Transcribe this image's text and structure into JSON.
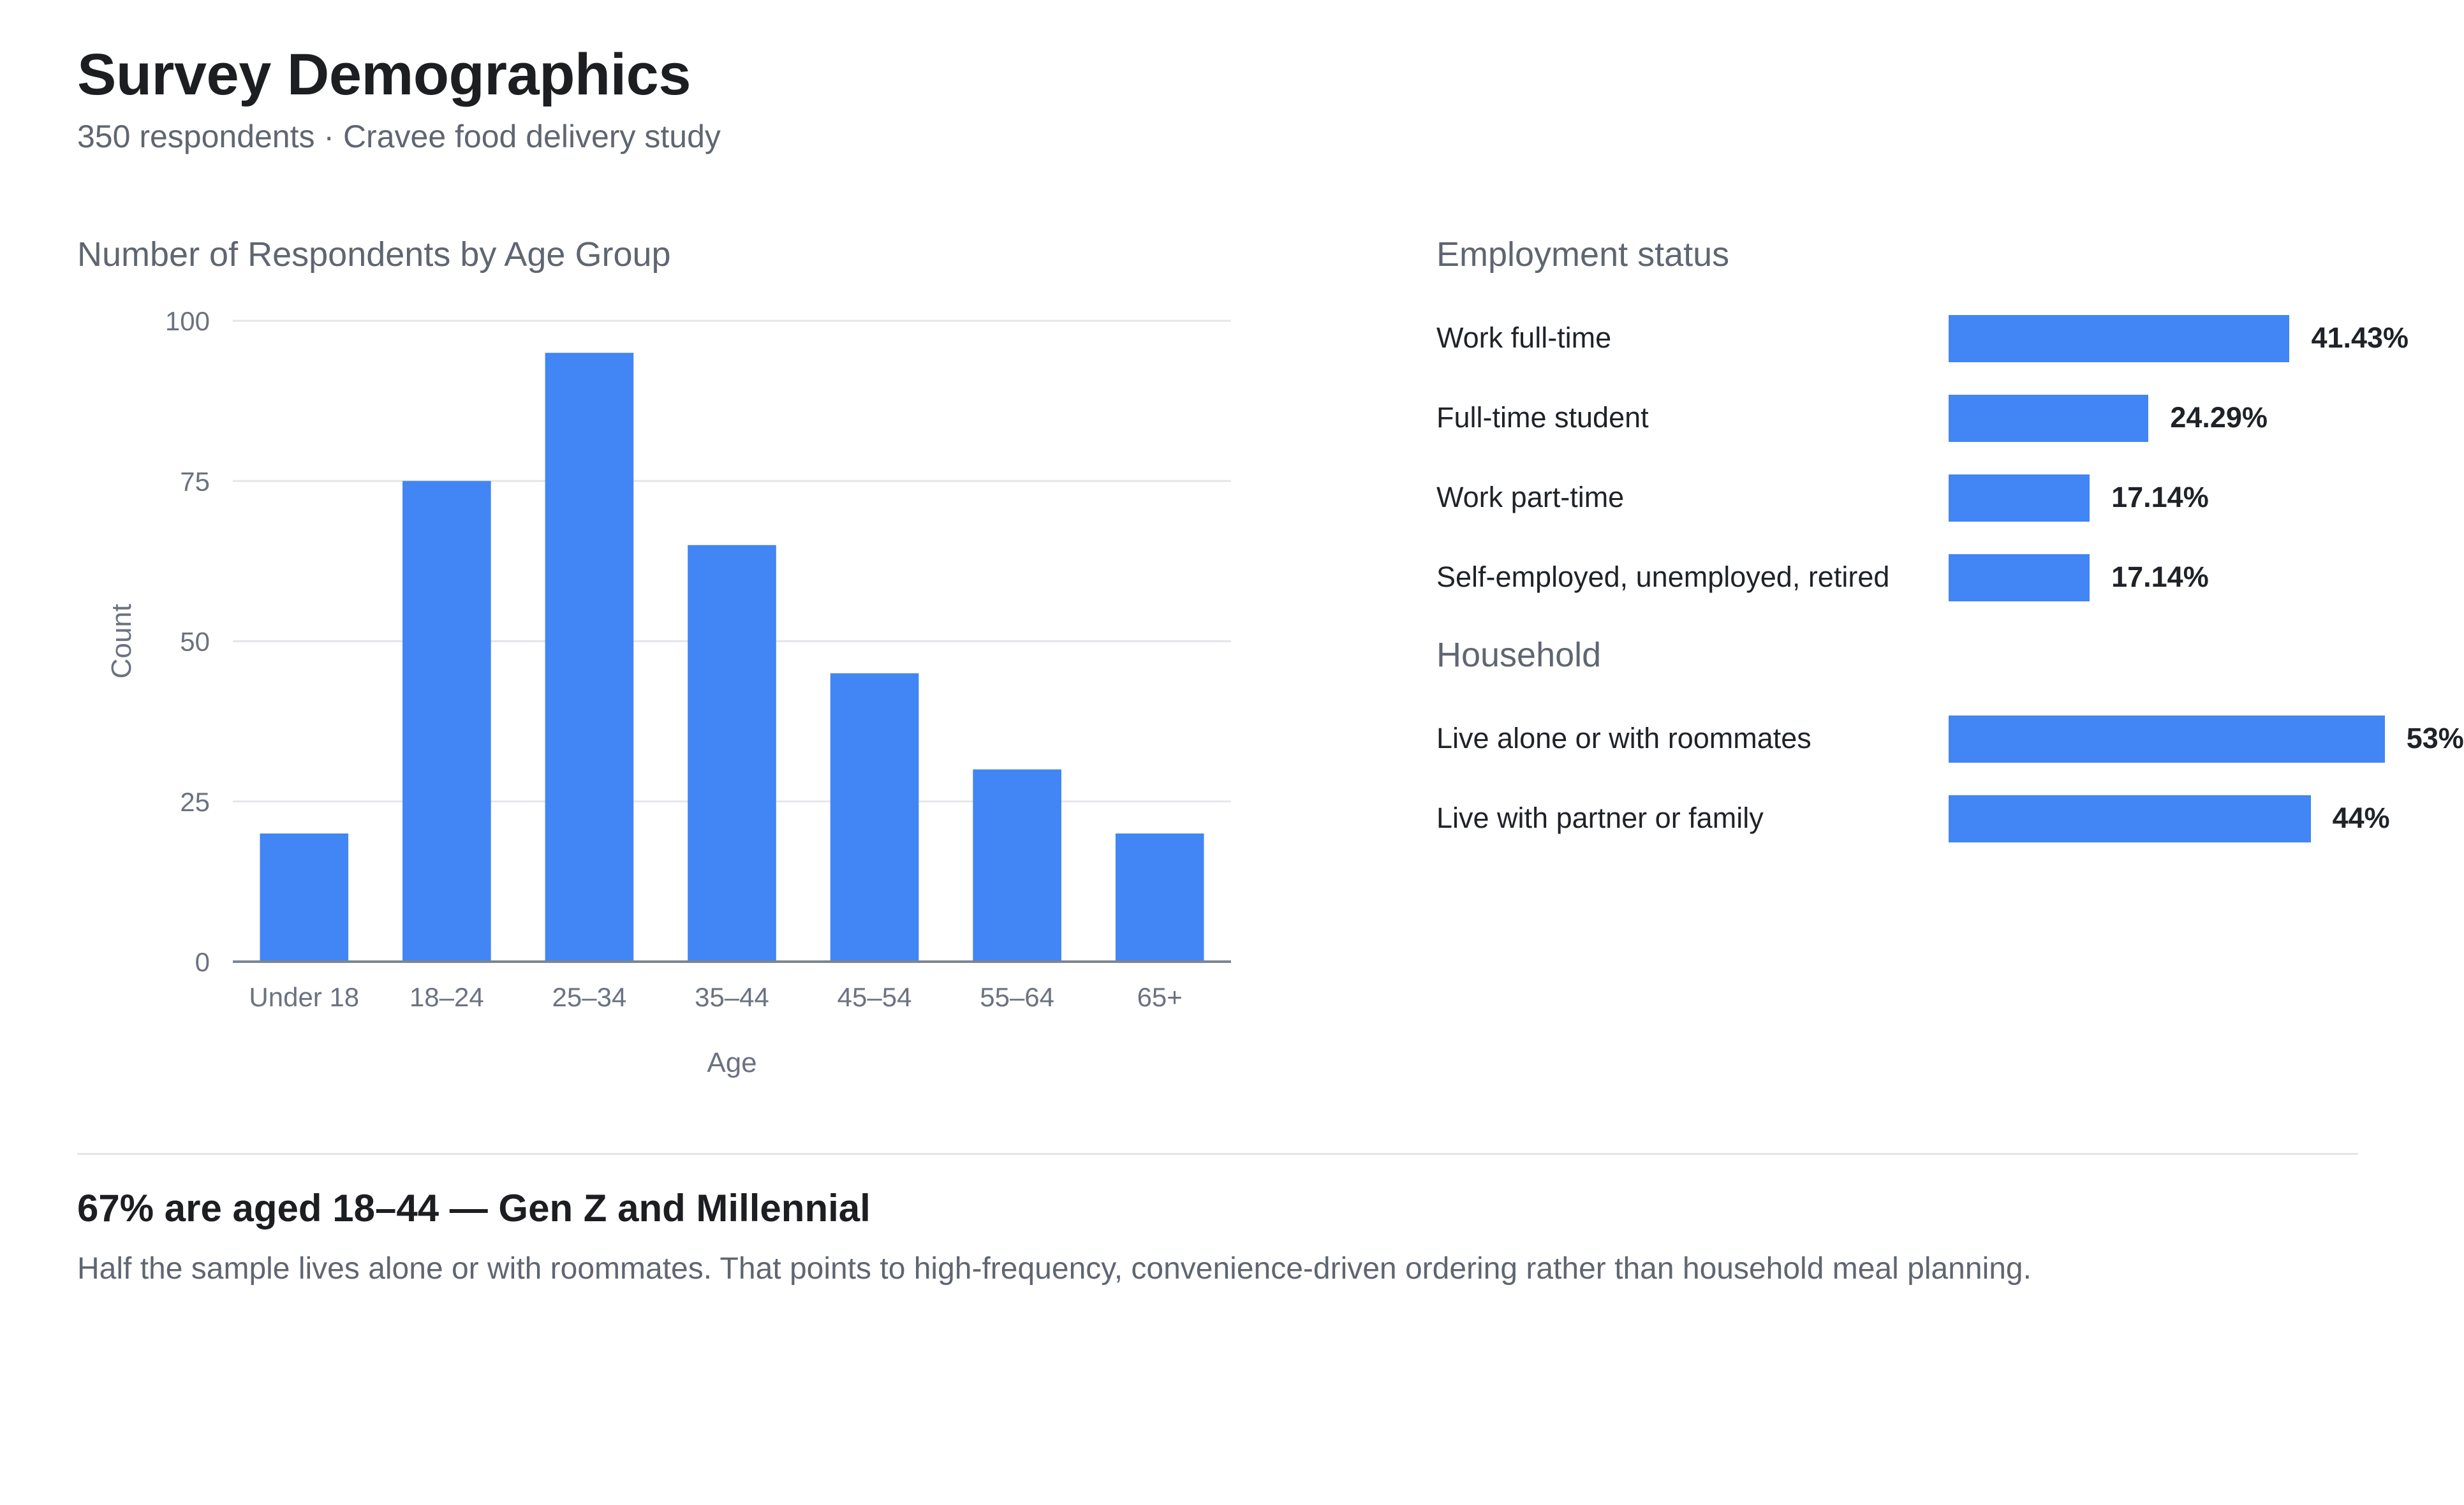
{
  "header": {
    "title": "Survey Demographics",
    "subtitle": "350 respondents · Cravee food delivery study"
  },
  "age_section": {
    "title": "Number of Respondents by Age Group"
  },
  "employment_section": {
    "title": "Employment status",
    "items": [
      {
        "label": "Work full-time",
        "value": 41.43,
        "value_label": "41.43%"
      },
      {
        "label": "Full-time student",
        "value": 24.29,
        "value_label": "24.29%"
      },
      {
        "label": "Work part-time",
        "value": 17.14,
        "value_label": "17.14%"
      },
      {
        "label": "Self-employed, unemployed, retired",
        "value": 17.14,
        "value_label": "17.14%"
      }
    ]
  },
  "household_section": {
    "title": "Household",
    "items": [
      {
        "label": "Live alone or with roommates",
        "value": 53,
        "value_label": "53%"
      },
      {
        "label": "Live with partner or family",
        "value": 44,
        "value_label": "44%"
      }
    ]
  },
  "insight": {
    "title": "67% are aged 18–44 — Gen Z and Millennial",
    "text": "Half the sample lives alone or with roommates. That points to high-frequency, convenience-driven ordering rather than household meal planning."
  },
  "colors": {
    "bar": "#4285f4",
    "grid": "#e4e6ea",
    "axis": "#7d8590",
    "tick_text": "#6b7280"
  },
  "chart_data": [
    {
      "type": "bar",
      "title": "Number of Respondents by Age Group",
      "xlabel": "Age",
      "ylabel": "Count",
      "categories": [
        "Under 18",
        "18–24",
        "25–34",
        "35–44",
        "45–54",
        "55–64",
        "65+"
      ],
      "values": [
        20,
        75,
        95,
        65,
        45,
        30,
        20
      ],
      "ylim": [
        0,
        100
      ],
      "yticks": [
        0,
        25,
        50,
        75,
        100
      ],
      "grid": true
    },
    {
      "type": "bar",
      "orientation": "horizontal",
      "title": "Employment status",
      "categories": [
        "Work full-time",
        "Full-time student",
        "Work part-time",
        "Self-employed, unemployed, retired"
      ],
      "values": [
        41.43,
        24.29,
        17.14,
        17.14
      ],
      "unit": "%"
    },
    {
      "type": "bar",
      "orientation": "horizontal",
      "title": "Household",
      "categories": [
        "Live alone or with roommates",
        "Live with partner or family"
      ],
      "values": [
        53,
        44
      ],
      "unit": "%"
    }
  ]
}
